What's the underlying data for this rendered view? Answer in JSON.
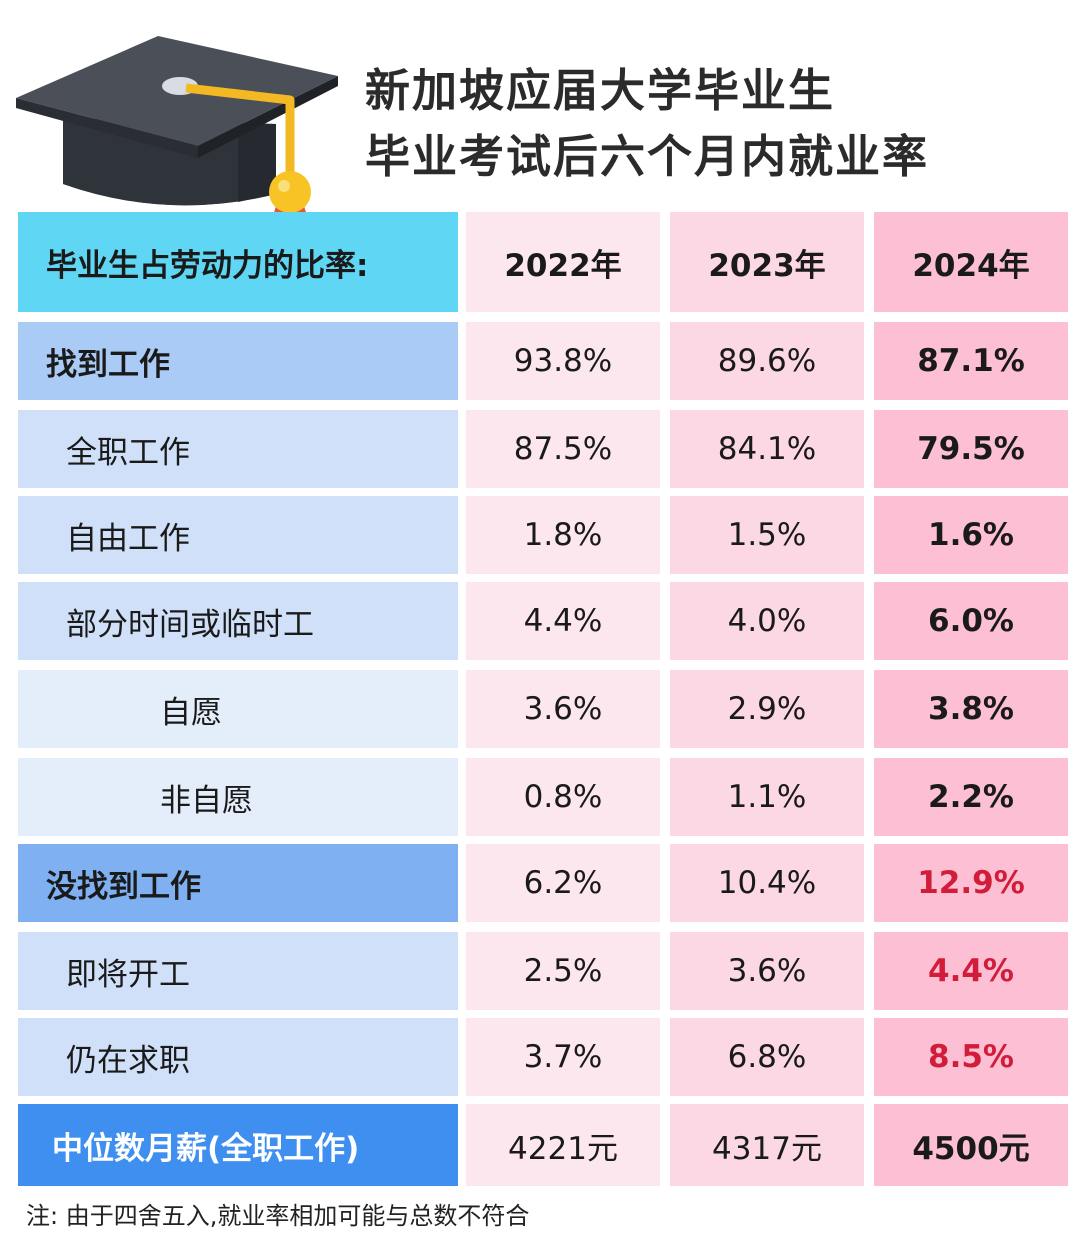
{
  "title": {
    "line1": "新加坡应届大学毕业生",
    "line2": "毕业考试后六个月内就业率"
  },
  "table": {
    "header": {
      "label": "毕业生占劳动力的比率:",
      "years": [
        "2022年",
        "2023年",
        "2024年"
      ]
    },
    "rows": [
      {
        "label": "找到工作",
        "values": [
          "93.8%",
          "89.6%",
          "87.1%"
        ],
        "level": 0,
        "bold": true,
        "bg": "#aacbf5",
        "red": false
      },
      {
        "label": "全职工作",
        "values": [
          "87.5%",
          "84.1%",
          "79.5%"
        ],
        "level": 1,
        "bold": false,
        "bg": "#cfe0f8",
        "red": false
      },
      {
        "label": "自由工作",
        "values": [
          "1.8%",
          "1.5%",
          "1.6%"
        ],
        "level": 1,
        "bold": false,
        "bg": "#cfe0f8",
        "red": false
      },
      {
        "label": "部分时间或临时工",
        "values": [
          "4.4%",
          "4.0%",
          "6.0%"
        ],
        "level": 1,
        "bold": false,
        "bg": "#cfe0f8",
        "red": false
      },
      {
        "label": "自愿",
        "values": [
          "3.6%",
          "2.9%",
          "3.8%"
        ],
        "level": 2,
        "bold": false,
        "bg": "#e4eefb",
        "red": false
      },
      {
        "label": "非自愿",
        "values": [
          "0.8%",
          "1.1%",
          "2.2%"
        ],
        "level": 2,
        "bold": false,
        "bg": "#e4eefb",
        "red": false
      },
      {
        "label": "没找到工作",
        "values": [
          "6.2%",
          "10.4%",
          "12.9%"
        ],
        "level": 0,
        "bold": true,
        "bg": "#7fb0f2",
        "red": true
      },
      {
        "label": "即将开工",
        "values": [
          "2.5%",
          "3.6%",
          "4.4%"
        ],
        "level": 1,
        "bold": false,
        "bg": "#cfe0f8",
        "red": true
      },
      {
        "label": "仍在求职",
        "values": [
          "3.7%",
          "6.8%",
          "8.5%"
        ],
        "level": 1,
        "bold": false,
        "bg": "#cfe0f8",
        "red": true
      }
    ],
    "salary": {
      "label": "中位数月薪(全职工作)",
      "values": [
        "4221元",
        "4317元",
        "4500元"
      ]
    }
  },
  "footnote": "注: 由于四舍五入,就业率相加可能与总数不符合",
  "colors": {
    "header_label_bg": "#5fd6f4",
    "salary_label_bg": "#3f8ff0",
    "red_text": "#d11d3a"
  },
  "icons": [
    "graduation-cap-icon"
  ]
}
